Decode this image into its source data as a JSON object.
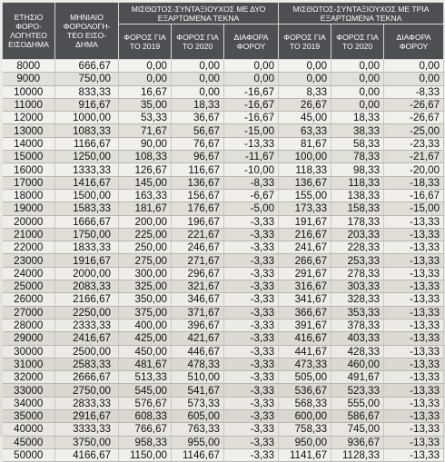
{
  "headers": {
    "income": "ΕΤΗΣΙΟ ΦΟΡΟ-ΛΟΓΗΤΕΟ ΕΙΣΟΔΗΜΑ",
    "monthly": "ΜΗΝΙΑΙΟ ΦΟΡΟΛΟΓΗ-ΤΕΟ ΕΙΣΟ-ΔΗΜΑ",
    "group_two": "ΜΙΣΘΩΤΟΣ-ΣΥΝΤΑΞΙΟΥΧΟΣ ΜΕ ΔΥΟ ΕΞΑΡΤΩΜΕΝΑ ΤΕΚΝΑ",
    "group_three": "ΜΙΣΘΩΤΟΣ-ΣΥΝΤΑΞΙΟΥΧΟΣ ΜΕ ΤΡΙΑ ΕΞΑΡΤΩΜΕΝΑ ΤΕΚΝΑ",
    "tax2019": "ΦΟΡΟΣ ΓΙΑ ΤΟ 2019",
    "tax2020": "ΦΟΡΟΣ ΓΙΑ ΤΟ 2020",
    "diff": "ΔΙΑΦΟΡΑ ΦΟΡΟΥ"
  },
  "rows": [
    [
      "8000",
      "666,67",
      "0,00",
      "0,00",
      "0,00",
      "0,00",
      "0,00",
      "0,00"
    ],
    [
      "9000",
      "750,00",
      "0,00",
      "0,00",
      "0,00",
      "0,00",
      "0,00",
      "0,00"
    ],
    [
      "10000",
      "833,33",
      "16,67",
      "0,00",
      "-16,67",
      "8,33",
      "0,00",
      "-8,33"
    ],
    [
      "11000",
      "916,67",
      "35,00",
      "18,33",
      "-16,67",
      "26,67",
      "0,00",
      "-26,67"
    ],
    [
      "12000",
      "1000,00",
      "53,33",
      "36,67",
      "-16,67",
      "45,00",
      "18,33",
      "-26,67"
    ],
    [
      "13000",
      "1083,33",
      "71,67",
      "56,67",
      "-15,00",
      "63,33",
      "38,33",
      "-25,00"
    ],
    [
      "14000",
      "1166,67",
      "90,00",
      "76,67",
      "-13,33",
      "81,67",
      "58,33",
      "-23,33"
    ],
    [
      "15000",
      "1250,00",
      "108,33",
      "96,67",
      "-11,67",
      "100,00",
      "78,33",
      "-21,67"
    ],
    [
      "16000",
      "1333,33",
      "126,67",
      "116,67",
      "-10,00",
      "118,33",
      "98,33",
      "-20,00"
    ],
    [
      "17000",
      "1416,67",
      "145,00",
      "136,67",
      "-8,33",
      "136,67",
      "118,33",
      "-18,33"
    ],
    [
      "18000",
      "1500,00",
      "163,33",
      "156,67",
      "-6,67",
      "155,00",
      "138,33",
      "-16,67"
    ],
    [
      "19000",
      "1583,33",
      "181,67",
      "176,67",
      "-5,00",
      "173,33",
      "158,33",
      "-15,00"
    ],
    [
      "20000",
      "1666,67",
      "200,00",
      "196,67",
      "-3,33",
      "191,67",
      "178,33",
      "-13,33"
    ],
    [
      "21000",
      "1750,00",
      "225,00",
      "221,67",
      "-3,33",
      "216,67",
      "203,33",
      "-13,33"
    ],
    [
      "22000",
      "1833,33",
      "250,00",
      "246,67",
      "-3,33",
      "241,67",
      "228,33",
      "-13,33"
    ],
    [
      "23000",
      "1916,67",
      "275,00",
      "271,67",
      "-3,33",
      "266,67",
      "253,33",
      "-13,33"
    ],
    [
      "24000",
      "2000,00",
      "300,00",
      "296,67",
      "-3,33",
      "291,67",
      "278,33",
      "-13,33"
    ],
    [
      "25000",
      "2083,33",
      "325,00",
      "321,67",
      "-3,33",
      "316,67",
      "303,33",
      "-13,33"
    ],
    [
      "26000",
      "2166,67",
      "350,00",
      "346,67",
      "-3,33",
      "341,67",
      "328,33",
      "-13,33"
    ],
    [
      "27000",
      "2250,00",
      "375,00",
      "371,67",
      "-3,33",
      "366,67",
      "353,33",
      "-13,33"
    ],
    [
      "28000",
      "2333,33",
      "400,00",
      "396,67",
      "-3,33",
      "391,67",
      "378,33",
      "-13,33"
    ],
    [
      "29000",
      "2416,67",
      "425,00",
      "421,67",
      "-3,33",
      "416,67",
      "403,33",
      "-13,33"
    ],
    [
      "30000",
      "2500,00",
      "450,00",
      "446,67",
      "-3,33",
      "441,67",
      "428,33",
      "-13,33"
    ],
    [
      "31000",
      "2583,33",
      "481,67",
      "478,33",
      "-3,33",
      "473,33",
      "460,00",
      "-13,33"
    ],
    [
      "32000",
      "2666,67",
      "513,33",
      "510,00",
      "-3,33",
      "505,00",
      "491,67",
      "-13,33"
    ],
    [
      "33000",
      "2750,00",
      "545,00",
      "541,67",
      "-3,33",
      "536,67",
      "523,33",
      "-13,33"
    ],
    [
      "34000",
      "2833,33",
      "576,67",
      "573,33",
      "-3,33",
      "568,33",
      "555,00",
      "-13,33"
    ],
    [
      "35000",
      "2916,67",
      "608,33",
      "605,00",
      "-3,33",
      "600,00",
      "586,67",
      "-13,33"
    ],
    [
      "40000",
      "3333,33",
      "766,67",
      "763,33",
      "-3,33",
      "758,33",
      "745,00",
      "-13,33"
    ],
    [
      "45000",
      "3750,00",
      "958,33",
      "955,00",
      "-3,33",
      "950,00",
      "936,67",
      "-13,33"
    ],
    [
      "50000",
      "4166,67",
      "1150,00",
      "1146,67",
      "-3,33",
      "1141,67",
      "1128,33",
      "-13,33"
    ]
  ]
}
